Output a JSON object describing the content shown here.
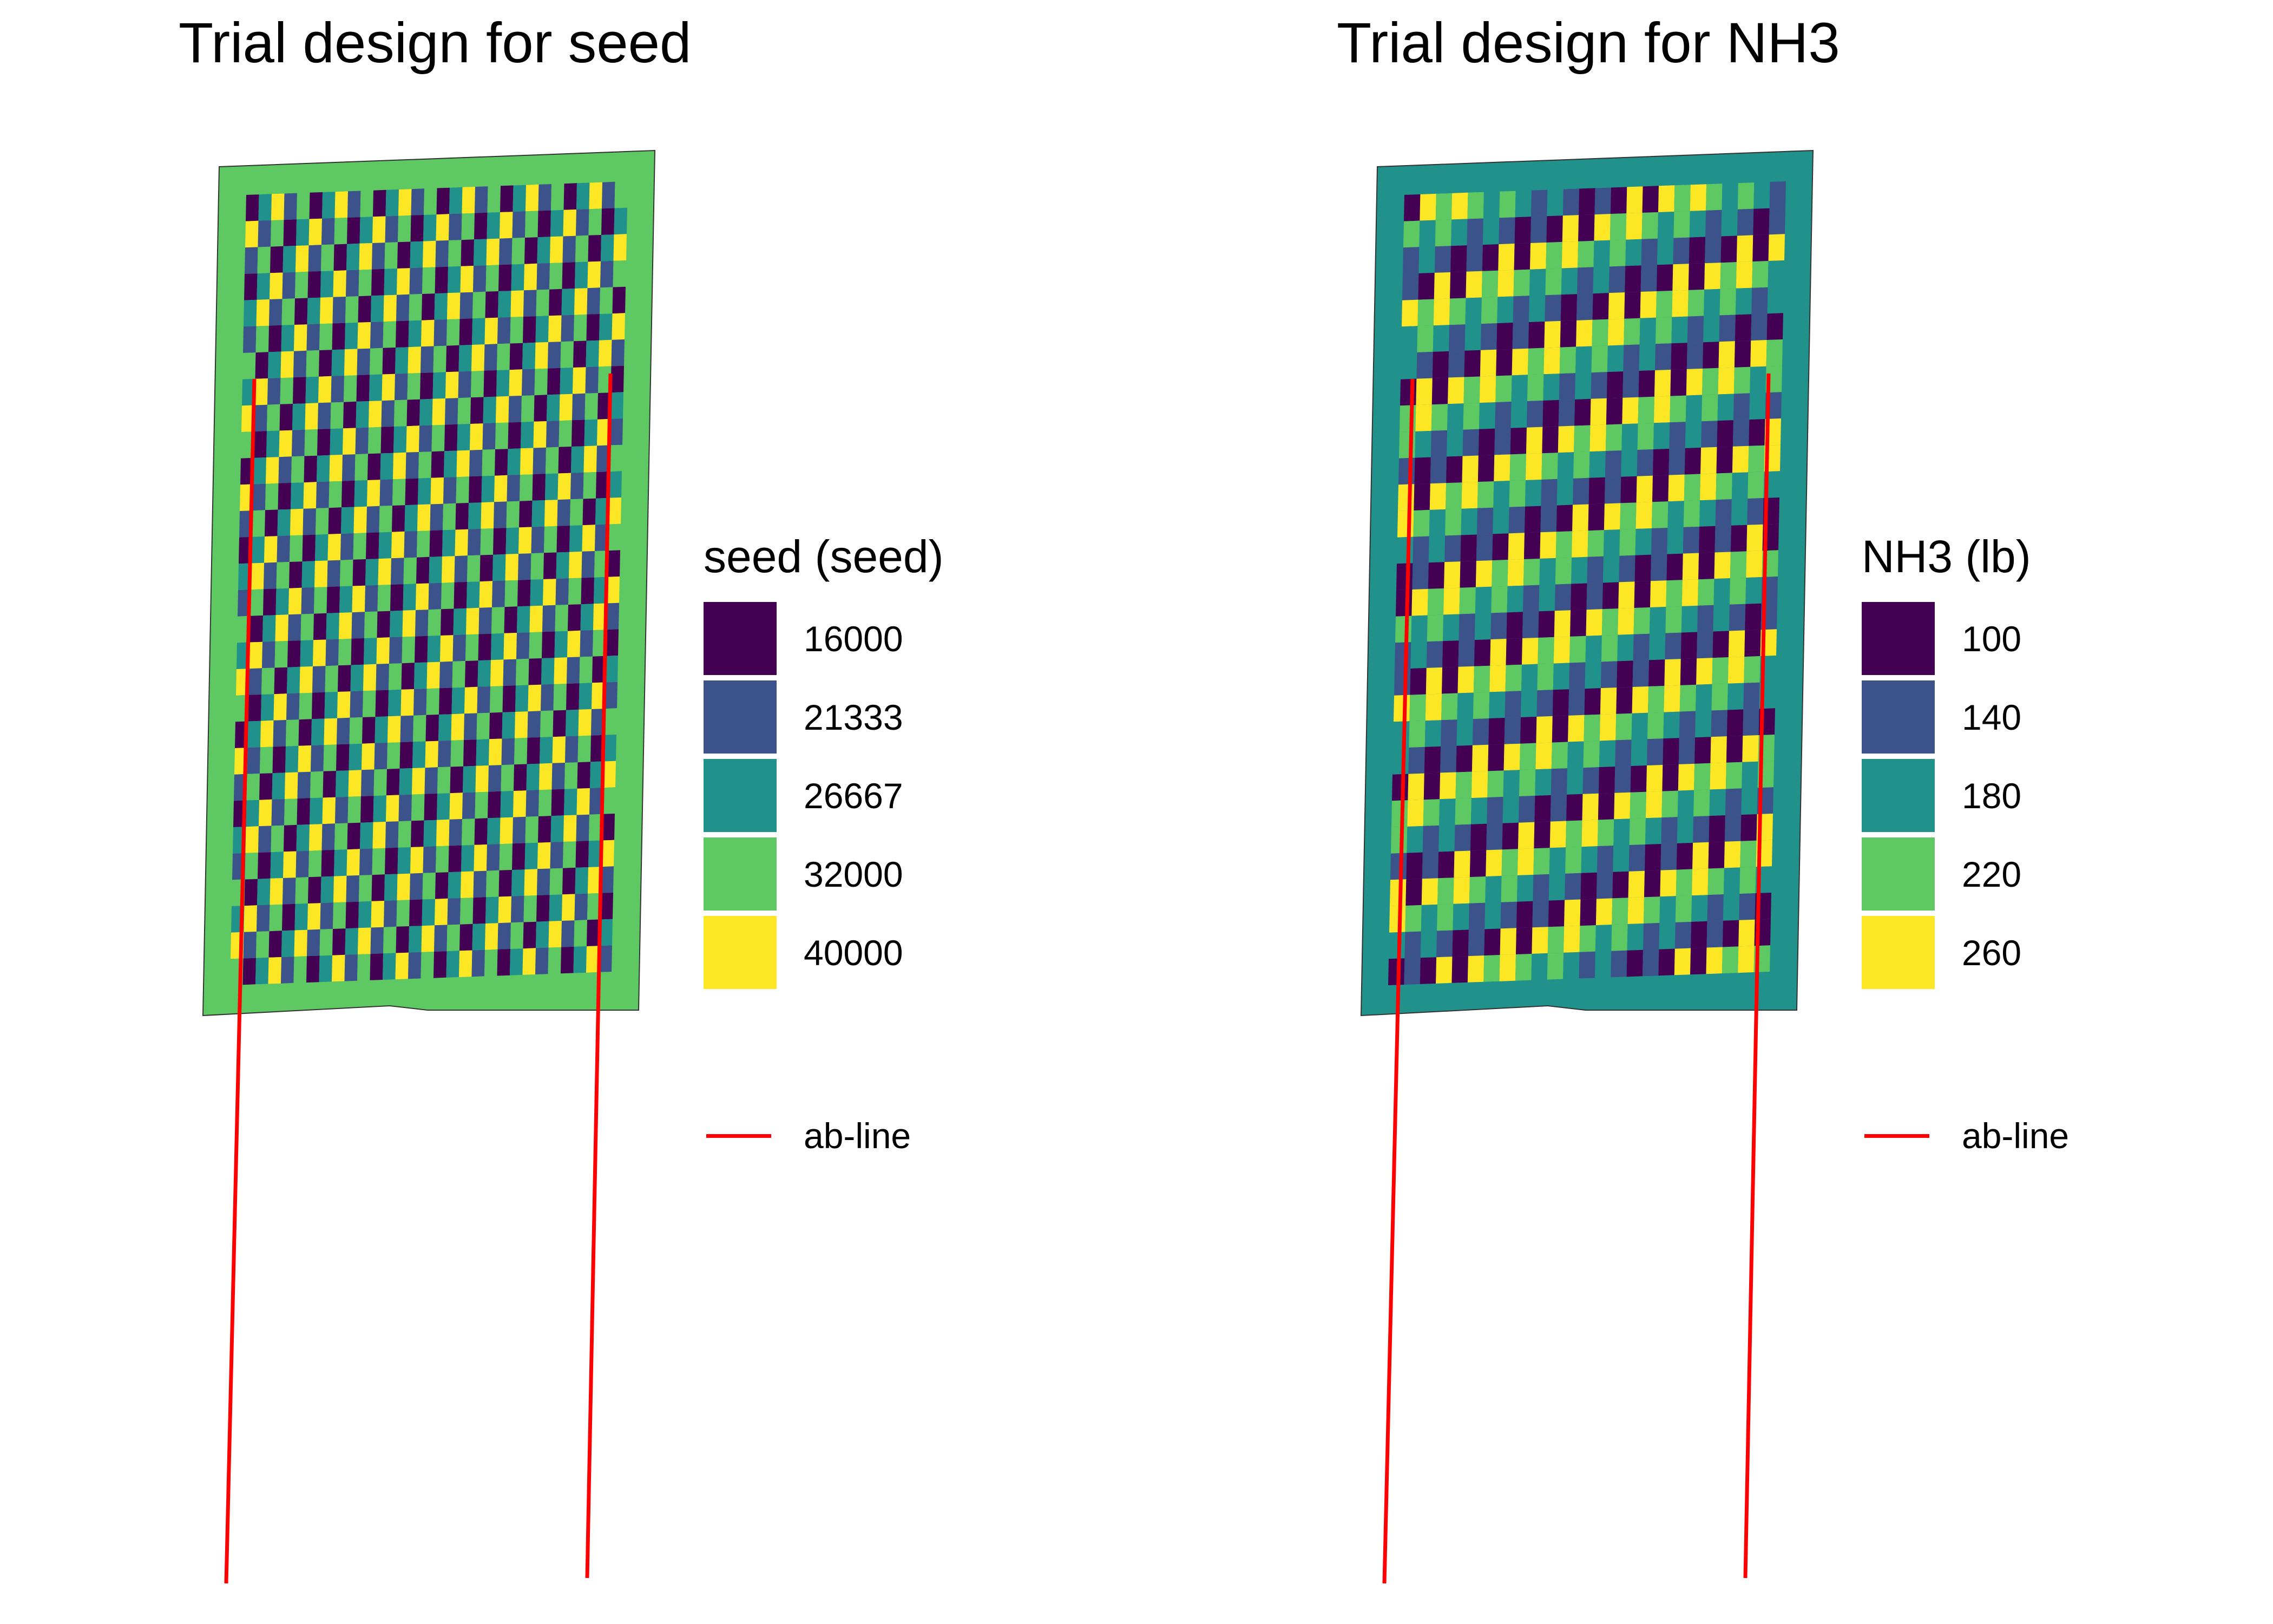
{
  "panels": [
    {
      "id": "seed",
      "title": "Trial design for seed",
      "legend_title": "seed (seed)",
      "legend": [
        {
          "label": "16000",
          "color": "#440154"
        },
        {
          "label": "21333",
          "color": "#3b528b"
        },
        {
          "label": "26667",
          "color": "#21918c"
        },
        {
          "label": "32000",
          "color": "#5ec962"
        },
        {
          "label": "40000",
          "color": "#fde725"
        }
      ],
      "headland_color": "#5ec962",
      "line_legend_label": "ab-line",
      "line_color": "#ff0000"
    },
    {
      "id": "nh3",
      "title": "Trial design for NH3",
      "legend_title": "NH3 (lb)",
      "legend": [
        {
          "label": "100",
          "color": "#440154"
        },
        {
          "label": "140",
          "color": "#3b528b"
        },
        {
          "label": "180",
          "color": "#21918c"
        },
        {
          "label": "220",
          "color": "#5ec962"
        },
        {
          "label": "260",
          "color": "#fde725"
        }
      ],
      "headland_color": "#21918c",
      "line_legend_label": "ab-line",
      "line_color": "#ff0000"
    }
  ]
}
